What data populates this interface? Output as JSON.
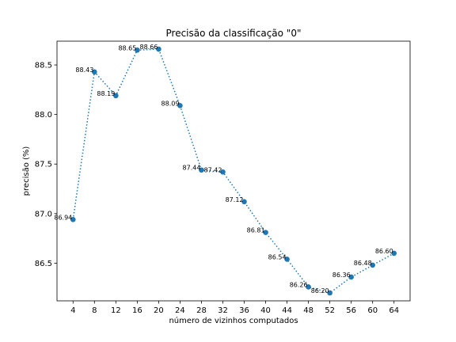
{
  "chart_data": {
    "type": "line",
    "title": "Precisão da classificação \"0\"",
    "xlabel": "número de vizinhos computados",
    "ylabel": "precisão (%)",
    "x": [
      4,
      8,
      12,
      16,
      20,
      24,
      28,
      32,
      36,
      40,
      44,
      48,
      52,
      56,
      60,
      64
    ],
    "values": [
      86.94,
      88.43,
      88.19,
      88.65,
      88.66,
      88.09,
      87.44,
      87.42,
      87.12,
      86.81,
      86.54,
      86.26,
      86.2,
      86.36,
      86.48,
      86.6
    ],
    "value_labels": [
      "86.94",
      "88.43",
      "88.19",
      "88.65",
      "88.66",
      "88.09",
      "87.44",
      "87.42",
      "87.12",
      "86.81",
      "86.54",
      "86.26",
      "86.20",
      "86.36",
      "86.48",
      "86.60"
    ],
    "x_ticks": [
      "4",
      "8",
      "12",
      "16",
      "20",
      "24",
      "28",
      "32",
      "36",
      "40",
      "44",
      "48",
      "52",
      "56",
      "60",
      "64"
    ],
    "y_ticks": [
      "86.5",
      "87.0",
      "87.5",
      "88.0",
      "88.5"
    ],
    "y_tick_values": [
      86.5,
      87.0,
      87.5,
      88.0,
      88.5
    ],
    "xlim": [
      1,
      67
    ],
    "ylim": [
      86.12,
      88.74
    ],
    "grid": false,
    "line_style": "dotted",
    "marker": "circle",
    "series_color": "#1f77b4"
  }
}
